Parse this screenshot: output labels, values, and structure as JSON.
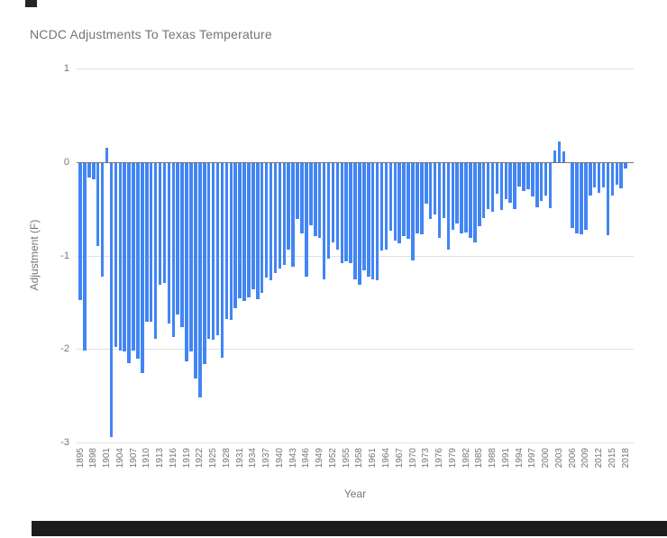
{
  "chart_data": {
    "type": "bar",
    "title": "NCDC Adjustments To Texas Temperature",
    "xlabel": "Year",
    "ylabel": "Adjustment (F)",
    "ylim": [
      -3,
      1
    ],
    "yticks": [
      1,
      0,
      -1,
      -2,
      -3
    ],
    "x_tick_step": 3,
    "grid": true,
    "legend": "none",
    "bar_color": "#4285f4",
    "grid_color": "#e0e0e0",
    "baseline_color": "#757575",
    "text_color": "#757575",
    "background_color": "#ffffff",
    "x": [
      1895,
      1896,
      1897,
      1898,
      1899,
      1900,
      1901,
      1902,
      1903,
      1904,
      1905,
      1906,
      1907,
      1908,
      1909,
      1910,
      1911,
      1912,
      1913,
      1914,
      1915,
      1916,
      1917,
      1918,
      1919,
      1920,
      1921,
      1922,
      1923,
      1924,
      1925,
      1926,
      1927,
      1928,
      1929,
      1930,
      1931,
      1932,
      1933,
      1934,
      1935,
      1936,
      1937,
      1938,
      1939,
      1940,
      1941,
      1942,
      1943,
      1944,
      1945,
      1946,
      1947,
      1948,
      1949,
      1950,
      1951,
      1952,
      1953,
      1954,
      1955,
      1956,
      1957,
      1958,
      1959,
      1960,
      1961,
      1962,
      1963,
      1964,
      1965,
      1966,
      1967,
      1968,
      1969,
      1970,
      1971,
      1972,
      1973,
      1974,
      1975,
      1976,
      1977,
      1978,
      1979,
      1980,
      1981,
      1982,
      1983,
      1984,
      1985,
      1986,
      1987,
      1988,
      1989,
      1990,
      1991,
      1992,
      1993,
      1994,
      1995,
      1996,
      1997,
      1998,
      1999,
      2000,
      2001,
      2002,
      2003,
      2004,
      2005,
      2006,
      2007,
      2008,
      2009,
      2010,
      2011,
      2012,
      2013,
      2014,
      2015,
      2016,
      2017,
      2018
    ],
    "values": [
      -1.47,
      -2.01,
      -0.16,
      -0.18,
      -0.89,
      -1.22,
      0.15,
      -2.93,
      -1.97,
      -2.01,
      -2.02,
      -2.14,
      -2.01,
      -2.09,
      -2.25,
      -1.7,
      -1.7,
      -1.88,
      -1.3,
      -1.28,
      -1.72,
      -1.86,
      -1.62,
      -1.76,
      -2.12,
      -2.02,
      -2.31,
      -2.51,
      -2.15,
      -1.88,
      -1.89,
      -1.84,
      -2.08,
      -1.67,
      -1.68,
      -1.55,
      -1.45,
      -1.48,
      -1.44,
      -1.35,
      -1.46,
      -1.39,
      -1.23,
      -1.26,
      -1.18,
      -1.13,
      -1.09,
      -0.93,
      -1.11,
      -0.6,
      -0.75,
      -1.22,
      -0.67,
      -0.78,
      -0.8,
      -1.25,
      -1.02,
      -0.85,
      -0.93,
      -1.07,
      -1.05,
      -1.07,
      -1.25,
      -1.3,
      -1.15,
      -1.22,
      -1.25,
      -1.26,
      -0.94,
      -0.93,
      -0.73,
      -0.83,
      -0.86,
      -0.78,
      -0.81,
      -1.04,
      -0.75,
      -0.76,
      -0.44,
      -0.6,
      -0.55,
      -0.8,
      -0.59,
      -0.93,
      -0.72,
      -0.65,
      -0.75,
      -0.74,
      -0.8,
      -0.85,
      -0.68,
      -0.59,
      -0.49,
      -0.52,
      -0.33,
      -0.5,
      -0.39,
      -0.43,
      -0.49,
      -0.25,
      -0.3,
      -0.28,
      -0.36,
      -0.47,
      -0.41,
      -0.35,
      -0.48,
      0.12,
      0.22,
      0.11,
      0.0,
      -0.7,
      -0.75,
      -0.76,
      -0.72,
      -0.35,
      -0.26,
      -0.32,
      -0.26,
      -0.77,
      -0.35,
      -0.23,
      -0.27,
      -0.06
    ]
  }
}
